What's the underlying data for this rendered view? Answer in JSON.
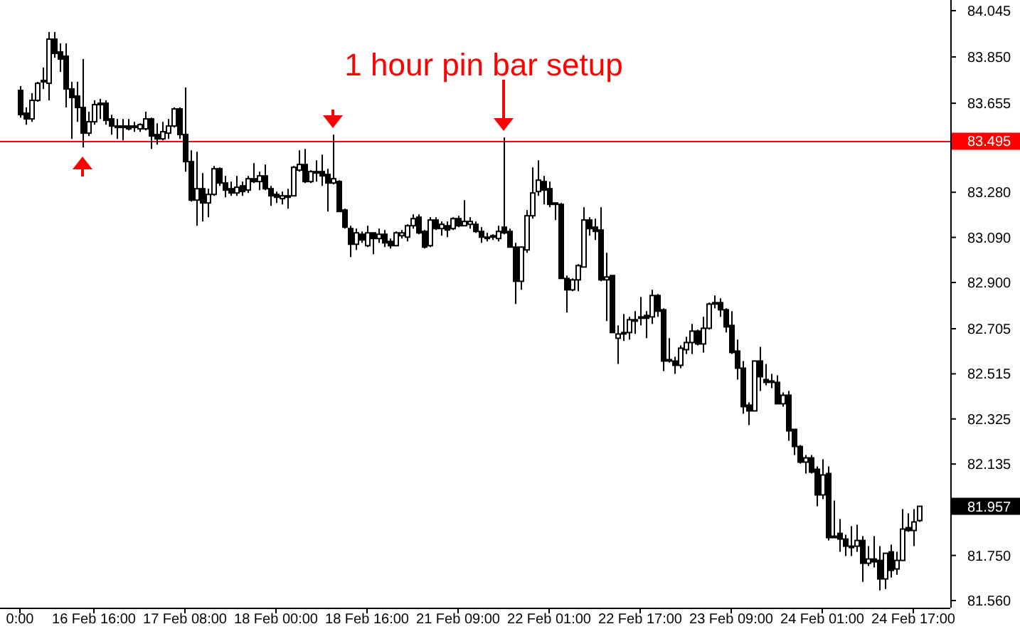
{
  "chart_data": {
    "type": "candlestick",
    "categories": [
      "0:00",
      null,
      null,
      null,
      null,
      null,
      null,
      null,
      null,
      null,
      null,
      null,
      null,
      "16 Feb 16:00",
      null,
      null,
      null,
      null,
      null,
      null,
      null,
      null,
      null,
      null,
      null,
      null,
      null,
      null,
      null,
      "17 Feb 08:00",
      null,
      null,
      null,
      null,
      null,
      null,
      null,
      null,
      null,
      null,
      null,
      null,
      null,
      null,
      null,
      "18 Feb 00:00",
      null,
      null,
      null,
      null,
      null,
      null,
      null,
      null,
      null,
      null,
      null,
      null,
      null,
      null,
      null,
      "18 Feb 16:00",
      null,
      null,
      null,
      null,
      null,
      null,
      null,
      null,
      null,
      null,
      null,
      null,
      null,
      null,
      null,
      "21 Feb 09:00",
      null,
      null,
      null,
      null,
      null,
      null,
      null,
      null,
      null,
      null,
      null,
      null,
      null,
      null,
      null,
      "22 Feb 01:00",
      null,
      null,
      null,
      null,
      null,
      null,
      null,
      null,
      null,
      null,
      null,
      null,
      null,
      null,
      null,
      "22 Feb 17:00",
      null,
      null,
      null,
      null,
      null,
      null,
      null,
      null,
      null,
      null,
      null,
      null,
      null,
      null,
      null,
      "23 Feb 09:00",
      null,
      null,
      null,
      null,
      null,
      null,
      null,
      null,
      null,
      null,
      null,
      null,
      null,
      null,
      null,
      "24 Feb 01:00",
      null,
      null,
      null,
      null,
      null,
      null,
      null,
      null,
      null,
      null,
      null,
      null,
      null,
      null,
      null,
      "24 Feb 17:00",
      null
    ],
    "ohlc": [
      [
        83.709,
        83.727,
        83.595,
        83.607
      ],
      [
        83.613,
        83.637,
        83.565,
        83.589
      ],
      [
        83.589,
        83.697,
        83.577,
        83.667
      ],
      [
        83.667,
        83.745,
        83.661,
        83.739
      ],
      [
        83.745,
        83.805,
        83.715,
        83.751
      ],
      [
        83.739,
        83.955,
        83.667,
        83.925
      ],
      [
        83.925,
        83.955,
        83.847,
        83.865
      ],
      [
        83.871,
        83.907,
        83.787,
        83.841
      ],
      [
        83.853,
        83.907,
        83.637,
        83.715
      ],
      [
        83.715,
        83.745,
        83.505,
        83.679
      ],
      [
        83.685,
        83.745,
        83.577,
        83.637
      ],
      [
        83.637,
        83.841,
        83.469,
        83.529
      ],
      [
        83.529,
        83.619,
        83.517,
        83.577
      ],
      [
        83.577,
        83.667,
        83.565,
        83.649
      ],
      [
        83.655,
        83.673,
        83.589,
        83.649
      ],
      [
        83.655,
        83.667,
        83.565,
        83.583
      ],
      [
        83.589,
        83.607,
        83.523,
        83.559
      ],
      [
        83.559,
        83.589,
        83.505,
        83.559
      ],
      [
        83.559,
        83.589,
        83.499,
        83.559
      ],
      [
        83.559,
        83.589,
        83.541,
        83.547
      ],
      [
        83.559,
        83.577,
        83.535,
        83.553
      ],
      [
        83.547,
        83.571,
        83.535,
        83.565
      ],
      [
        83.547,
        83.619,
        83.541,
        83.589
      ],
      [
        83.589,
        83.595,
        83.463,
        83.517
      ],
      [
        83.523,
        83.571,
        83.481,
        83.505
      ],
      [
        83.505,
        83.577,
        83.499,
        83.535
      ],
      [
        83.529,
        83.589,
        83.505,
        83.559
      ],
      [
        83.559,
        83.637,
        83.553,
        83.631
      ],
      [
        83.631,
        83.637,
        83.505,
        83.523
      ],
      [
        83.523,
        83.721,
        83.367,
        83.409
      ],
      [
        83.409,
        83.457,
        83.241,
        83.247
      ],
      [
        83.247,
        83.451,
        83.139,
        83.295
      ],
      [
        83.295,
        83.361,
        83.157,
        83.235
      ],
      [
        83.235,
        83.295,
        83.175,
        83.271
      ],
      [
        83.271,
        83.391,
        83.265,
        83.379
      ],
      [
        83.379,
        83.385,
        83.307,
        83.319
      ],
      [
        83.319,
        83.349,
        83.259,
        83.289
      ],
      [
        83.295,
        83.325,
        83.265,
        83.277
      ],
      [
        83.277,
        83.349,
        83.265,
        83.301
      ],
      [
        83.307,
        83.325,
        83.265,
        83.283
      ],
      [
        83.289,
        83.349,
        83.277,
        83.337
      ],
      [
        83.337,
        83.403,
        83.319,
        83.325
      ],
      [
        83.325,
        83.367,
        83.289,
        83.349
      ],
      [
        83.349,
        83.397,
        83.289,
        83.295
      ],
      [
        83.295,
        83.307,
        83.223,
        83.265
      ],
      [
        83.271,
        83.283,
        83.235,
        83.259
      ],
      [
        83.253,
        83.283,
        83.229,
        83.265
      ],
      [
        83.265,
        83.295,
        83.211,
        83.265
      ],
      [
        83.265,
        83.391,
        83.265,
        83.385
      ],
      [
        83.373,
        83.457,
        83.367,
        83.397
      ],
      [
        83.397,
        83.463,
        83.319,
        83.325
      ],
      [
        83.325,
        83.373,
        83.319,
        83.367
      ],
      [
        83.367,
        83.415,
        83.325,
        83.367
      ],
      [
        83.367,
        83.439,
        83.307,
        83.349
      ],
      [
        83.355,
        83.379,
        83.199,
        83.319
      ],
      [
        83.319,
        83.523,
        83.313,
        83.337
      ],
      [
        83.325,
        83.331,
        83.199,
        83.199
      ],
      [
        83.205,
        83.211,
        83.127,
        83.133
      ],
      [
        83.127,
        83.139,
        83.007,
        83.061
      ],
      [
        83.061,
        83.127,
        83.037,
        83.109
      ],
      [
        83.103,
        83.115,
        83.067,
        83.079
      ],
      [
        83.055,
        83.139,
        83.049,
        83.109
      ],
      [
        83.109,
        83.109,
        83.019,
        83.085
      ],
      [
        83.085,
        83.127,
        83.067,
        83.103
      ],
      [
        83.103,
        83.121,
        83.049,
        83.067
      ],
      [
        83.073,
        83.085,
        83.043,
        83.055
      ],
      [
        83.055,
        83.115,
        83.055,
        83.109
      ],
      [
        83.097,
        83.121,
        83.085,
        83.109
      ],
      [
        83.091,
        83.145,
        83.073,
        83.139
      ],
      [
        83.139,
        83.187,
        83.127,
        83.169
      ],
      [
        83.175,
        83.187,
        83.103,
        83.109
      ],
      [
        83.115,
        83.121,
        83.043,
        83.049
      ],
      [
        83.055,
        83.175,
        83.049,
        83.163
      ],
      [
        83.163,
        83.175,
        83.121,
        83.127
      ],
      [
        83.127,
        83.157,
        83.097,
        83.145
      ],
      [
        83.139,
        83.157,
        83.091,
        83.121
      ],
      [
        83.127,
        83.175,
        83.121,
        83.169
      ],
      [
        83.169,
        83.181,
        83.133,
        83.139
      ],
      [
        83.139,
        83.247,
        83.139,
        83.157
      ],
      [
        83.145,
        83.175,
        83.127,
        83.157
      ],
      [
        83.145,
        83.157,
        83.109,
        83.115
      ],
      [
        83.115,
        83.133,
        83.067,
        83.091
      ],
      [
        83.091,
        83.109,
        83.073,
        83.091
      ],
      [
        83.097,
        83.103,
        83.079,
        83.091
      ],
      [
        83.085,
        83.139,
        83.073,
        83.115
      ],
      [
        83.133,
        83.511,
        83.103,
        83.109
      ],
      [
        83.115,
        83.127,
        83.049,
        83.049
      ],
      [
        83.049,
        83.067,
        82.809,
        82.905
      ],
      [
        82.905,
        83.049,
        82.869,
        83.049
      ],
      [
        83.037,
        83.205,
        83.025,
        83.181
      ],
      [
        83.181,
        83.385,
        83.169,
        83.277
      ],
      [
        83.283,
        83.415,
        83.265,
        83.331
      ],
      [
        83.325,
        83.349,
        83.229,
        83.289
      ],
      [
        83.295,
        83.325,
        83.217,
        83.229
      ],
      [
        83.235,
        83.235,
        83.163,
        83.229
      ],
      [
        83.229,
        83.235,
        82.917,
        82.917
      ],
      [
        82.917,
        82.929,
        82.773,
        82.869
      ],
      [
        82.869,
        82.917,
        82.863,
        82.911
      ],
      [
        82.911,
        82.977,
        82.863,
        82.971
      ],
      [
        82.965,
        83.217,
        82.965,
        83.163
      ],
      [
        83.163,
        83.175,
        83.097,
        83.127
      ],
      [
        83.133,
        83.169,
        83.079,
        83.115
      ],
      [
        83.121,
        83.217,
        82.905,
        82.911
      ],
      [
        82.911,
        83.025,
        82.737,
        82.923
      ],
      [
        82.929,
        82.929,
        82.689,
        82.689
      ],
      [
        82.665,
        82.719,
        82.557,
        82.683
      ],
      [
        82.689,
        82.767,
        82.653,
        82.689
      ],
      [
        82.689,
        82.755,
        82.659,
        82.743
      ],
      [
        82.737,
        82.779,
        82.683,
        82.743
      ],
      [
        82.749,
        82.839,
        82.719,
        82.755
      ],
      [
        82.761,
        82.779,
        82.665,
        82.749
      ],
      [
        82.755,
        82.869,
        82.725,
        82.845
      ],
      [
        82.845,
        82.851,
        82.755,
        82.779
      ],
      [
        82.785,
        82.791,
        82.527,
        82.569
      ],
      [
        82.575,
        82.665,
        82.563,
        82.575
      ],
      [
        82.569,
        82.587,
        82.515,
        82.551
      ],
      [
        82.551,
        82.635,
        82.539,
        82.623
      ],
      [
        82.617,
        82.671,
        82.599,
        82.647
      ],
      [
        82.647,
        82.725,
        82.599,
        82.695
      ],
      [
        82.695,
        82.701,
        82.635,
        82.641
      ],
      [
        82.641,
        82.755,
        82.605,
        82.707
      ],
      [
        82.707,
        82.815,
        82.701,
        82.809
      ],
      [
        82.809,
        82.845,
        82.791,
        82.815
      ],
      [
        82.815,
        82.833,
        82.755,
        82.785
      ],
      [
        82.785,
        82.791,
        82.689,
        82.713
      ],
      [
        82.719,
        82.779,
        82.599,
        82.605
      ],
      [
        82.611,
        82.659,
        82.491,
        82.539
      ],
      [
        82.539,
        82.569,
        82.347,
        82.377
      ],
      [
        82.383,
        82.395,
        82.299,
        82.359
      ],
      [
        82.359,
        82.569,
        82.359,
        82.569
      ],
      [
        82.569,
        82.629,
        82.443,
        82.503
      ],
      [
        82.491,
        82.557,
        82.467,
        82.479
      ],
      [
        82.485,
        82.515,
        82.455,
        82.479
      ],
      [
        82.479,
        82.509,
        82.389,
        82.389
      ],
      [
        82.389,
        82.437,
        82.377,
        82.425
      ],
      [
        82.425,
        82.443,
        82.233,
        82.275
      ],
      [
        82.281,
        82.281,
        82.173,
        82.209
      ],
      [
        82.209,
        82.215,
        82.137,
        82.143
      ],
      [
        82.143,
        82.173,
        82.095,
        82.161
      ],
      [
        82.161,
        82.173,
        82.095,
        82.101
      ],
      [
        82.113,
        82.125,
        81.957,
        82.005
      ],
      [
        82.005,
        82.155,
        81.987,
        82.089
      ],
      [
        82.095,
        82.125,
        81.813,
        81.825
      ],
      [
        81.831,
        81.981,
        81.825,
        81.825
      ],
      [
        81.843,
        81.903,
        81.765,
        81.819
      ],
      [
        81.819,
        81.837,
        81.747,
        81.789
      ],
      [
        81.789,
        81.873,
        81.747,
        81.789
      ],
      [
        81.789,
        81.879,
        81.765,
        81.813
      ],
      [
        81.813,
        81.831,
        81.639,
        81.717
      ],
      [
        81.717,
        81.789,
        81.705,
        81.735
      ],
      [
        81.735,
        81.831,
        81.699,
        81.723
      ],
      [
        81.729,
        81.789,
        81.603,
        81.651
      ],
      [
        81.651,
        81.759,
        81.609,
        81.759
      ],
      [
        81.765,
        81.795,
        81.657,
        81.687
      ],
      [
        81.693,
        81.765,
        81.669,
        81.729
      ],
      [
        81.729,
        81.945,
        81.729,
        81.861
      ],
      [
        81.867,
        81.927,
        81.849,
        81.855
      ],
      [
        81.855,
        81.945,
        81.789,
        81.891
      ],
      [
        81.897,
        81.957,
        81.891,
        81.957
      ]
    ],
    "ylim": [
      81.53,
      84.09
    ],
    "yticks": [
      {
        "value": 84.045,
        "label": "84.045"
      },
      {
        "value": 83.85,
        "label": "83.850"
      },
      {
        "value": 83.655,
        "label": "83.655"
      },
      {
        "value": 83.28,
        "label": "83.280"
      },
      {
        "value": 83.09,
        "label": "83.090"
      },
      {
        "value": 82.9,
        "label": "82.900"
      },
      {
        "value": 82.705,
        "label": "82.705"
      },
      {
        "value": 82.515,
        "label": "82.515"
      },
      {
        "value": 82.325,
        "label": "82.325"
      },
      {
        "value": 82.135,
        "label": "82.135"
      },
      {
        "value": 81.75,
        "label": "81.750"
      },
      {
        "value": 81.56,
        "label": "81.560"
      }
    ],
    "ref_lines": [
      {
        "axis": "y",
        "value": 83.495,
        "label": "83.495",
        "color": "#ff0000"
      }
    ],
    "annotations": [
      "1 hour pin bar setup",
      "81.957"
    ]
  }
}
